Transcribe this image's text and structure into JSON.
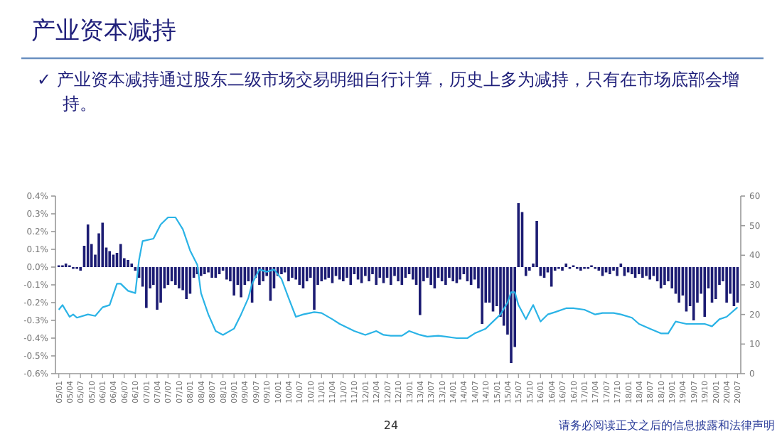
{
  "chart_data": {
    "type": "bar",
    "title": "产业资本减持",
    "subtitle": "✓ 产业资本减持通过股东二级市场交易明细自行计算，历史上多为减持，只有在市场底部会增持。",
    "annotations": [
      "24",
      "请务必阅读正文之后的信息披露和法律声明"
    ],
    "x": [
      "2005-01",
      "2005-02",
      "2005-03",
      "2005-04",
      "2005-05",
      "2005-06",
      "2005-07",
      "2005-08",
      "2005-09",
      "2005-10",
      "2005-11",
      "2005-12",
      "2006-01",
      "2006-02",
      "2006-03",
      "2006-04",
      "2006-05",
      "2006-06",
      "2006-07",
      "2006-08",
      "2006-09",
      "2006-10",
      "2006-11",
      "2006-12",
      "2007-01",
      "2007-02",
      "2007-03",
      "2007-04",
      "2007-05",
      "2007-06",
      "2007-07",
      "2007-08",
      "2007-09",
      "2007-10",
      "2007-11",
      "2007-12",
      "2008-01",
      "2008-02",
      "2008-03",
      "2008-04",
      "2008-05",
      "2008-06",
      "2008-07",
      "2008-08",
      "2008-09",
      "2008-10",
      "2008-11",
      "2008-12",
      "2009-01",
      "2009-02",
      "2009-03",
      "2009-04",
      "2009-05",
      "2009-06",
      "2009-07",
      "2009-08",
      "2009-09",
      "2009-10",
      "2009-11",
      "2009-12",
      "2010-01",
      "2010-02",
      "2010-03",
      "2010-04",
      "2010-05",
      "2010-06",
      "2010-07",
      "2010-08",
      "2010-09",
      "2010-10",
      "2010-11",
      "2010-12",
      "2011-01",
      "2011-02",
      "2011-03",
      "2011-04",
      "2011-05",
      "2011-06",
      "2011-07",
      "2011-08",
      "2011-09",
      "2011-10",
      "2011-11",
      "2011-12",
      "2012-01",
      "2012-02",
      "2012-03",
      "2012-04",
      "2012-05",
      "2012-06",
      "2012-07",
      "2012-08",
      "2012-09",
      "2012-10",
      "2012-11",
      "2012-12",
      "2013-01",
      "2013-02",
      "2013-03",
      "2013-04",
      "2013-05",
      "2013-06",
      "2013-07",
      "2013-08",
      "2013-09",
      "2013-10",
      "2013-11",
      "2013-12",
      "2014-01",
      "2014-02",
      "2014-03",
      "2014-04",
      "2014-05",
      "2014-06",
      "2014-07",
      "2014-08",
      "2014-09",
      "2014-10",
      "2014-11",
      "2014-12",
      "2015-01",
      "2015-02",
      "2015-03",
      "2015-04",
      "2015-05",
      "2015-06",
      "2015-07",
      "2015-08",
      "2015-09",
      "2015-10",
      "2015-11",
      "2015-12",
      "2016-01",
      "2016-02",
      "2016-03",
      "2016-04",
      "2016-05",
      "2016-06",
      "2016-07",
      "2016-08",
      "2016-09",
      "2016-10",
      "2016-11",
      "2016-12",
      "2017-01",
      "2017-02",
      "2017-03",
      "2017-04",
      "2017-05",
      "2017-06",
      "2017-07",
      "2017-08",
      "2017-09",
      "2017-10",
      "2017-11",
      "2017-12",
      "2018-01",
      "2018-02",
      "2018-03",
      "2018-04",
      "2018-05",
      "2018-06",
      "2018-07",
      "2018-08",
      "2018-09",
      "2018-10",
      "2018-11",
      "2018-12",
      "2019-01",
      "2019-02",
      "2019-03",
      "2019-04",
      "2019-05",
      "2019-06",
      "2019-07",
      "2019-08",
      "2019-09",
      "2019-10",
      "2019-11",
      "2019-12",
      "2020-01",
      "2020-02",
      "2020-03",
      "2020-04",
      "2020-05",
      "2020-06",
      "2020-07"
    ],
    "series": [
      {
        "color": "#1c1c73",
        "values": [
          0.01,
          0.01,
          0.02,
          0.01,
          -0.01,
          -0.01,
          -0.02,
          0.12,
          0.24,
          0.13,
          0.07,
          0.19,
          0.25,
          0.11,
          0.09,
          0.07,
          0.08,
          0.13,
          0.05,
          0.04,
          0.02,
          -0.02,
          -0.06,
          -0.11,
          -0.23,
          -0.12,
          -0.1,
          -0.24,
          -0.2,
          -0.12,
          -0.1,
          -0.08,
          -0.1,
          -0.12,
          -0.13,
          -0.18,
          -0.15,
          -0.06,
          -0.04,
          -0.05,
          -0.04,
          -0.03,
          -0.06,
          -0.06,
          -0.04,
          -0.02,
          -0.07,
          -0.08,
          -0.16,
          -0.1,
          -0.17,
          -0.1,
          -0.08,
          -0.2,
          -0.06,
          -0.1,
          -0.08,
          -0.05,
          -0.19,
          -0.12,
          -0.05,
          -0.04,
          -0.03,
          -0.08,
          -0.06,
          -0.07,
          -0.1,
          -0.12,
          -0.08,
          -0.06,
          -0.24,
          -0.1,
          -0.08,
          -0.07,
          -0.06,
          -0.09,
          -0.05,
          -0.07,
          -0.08,
          -0.06,
          -0.1,
          -0.04,
          -0.07,
          -0.09,
          -0.05,
          -0.08,
          -0.04,
          -0.1,
          -0.06,
          -0.09,
          -0.06,
          -0.1,
          -0.05,
          -0.08,
          -0.1,
          -0.06,
          -0.04,
          -0.07,
          -0.1,
          -0.27,
          -0.08,
          -0.06,
          -0.1,
          -0.12,
          -0.06,
          -0.08,
          -0.1,
          -0.06,
          -0.08,
          -0.09,
          -0.07,
          -0.04,
          -0.08,
          -0.1,
          -0.07,
          -0.12,
          -0.32,
          -0.2,
          -0.2,
          -0.25,
          -0.22,
          -0.28,
          -0.33,
          -0.38,
          -0.54,
          -0.45,
          0.36,
          0.31,
          -0.05,
          -0.02,
          0.02,
          0.26,
          -0.05,
          -0.06,
          -0.03,
          -0.11,
          -0.02,
          -0.01,
          -0.02,
          0.02,
          -0.01,
          0.01,
          -0.01,
          -0.02,
          -0.01,
          -0.01,
          0.01,
          -0.01,
          -0.02,
          -0.05,
          -0.03,
          -0.04,
          -0.02,
          -0.05,
          0.02,
          -0.05,
          -0.03,
          -0.04,
          -0.06,
          -0.04,
          -0.06,
          -0.05,
          -0.07,
          -0.05,
          -0.08,
          -0.12,
          -0.1,
          -0.08,
          -0.12,
          -0.15,
          -0.2,
          -0.16,
          -0.25,
          -0.22,
          -0.3,
          -0.2,
          -0.15,
          -0.28,
          -0.12,
          -0.2,
          -0.18,
          -0.1,
          -0.08,
          -0.2,
          -0.15,
          -0.22,
          -0.2
        ]
      },
      {
        "type": "line",
        "axis": "y2",
        "color": "#2ab3e6",
        "x": [
          "2005-01",
          "2005-02",
          "2005-04",
          "2005-05",
          "2005-06",
          "2005-09",
          "2005-11",
          "2006-01",
          "2006-03",
          "2006-05",
          "2006-06",
          "2006-08",
          "2006-10",
          "2006-11",
          "2006-12",
          "2007-03",
          "2007-05",
          "2007-07",
          "2007-09",
          "2007-11",
          "2008-01",
          "2008-03",
          "2008-04",
          "2008-06",
          "2008-08",
          "2008-10",
          "2009-01",
          "2009-03",
          "2009-05",
          "2009-06",
          "2009-08",
          "2009-10",
          "2009-12",
          "2010-02",
          "2010-04",
          "2010-06",
          "2010-08",
          "2010-11",
          "2011-01",
          "2011-04",
          "2011-06",
          "2011-10",
          "2012-01",
          "2012-04",
          "2012-06",
          "2012-08",
          "2012-11",
          "2013-01",
          "2013-04",
          "2013-06",
          "2013-09",
          "2013-11",
          "2014-02",
          "2014-05",
          "2014-07",
          "2014-10",
          "2014-12",
          "2015-02",
          "2015-04",
          "2015-05",
          "2015-06",
          "2015-07",
          "2015-09",
          "2015-10",
          "2015-11",
          "2016-01",
          "2016-03",
          "2016-05",
          "2016-08",
          "2016-10",
          "2017-01",
          "2017-04",
          "2017-06",
          "2017-09",
          "2017-11",
          "2018-02",
          "2018-04",
          "2018-07",
          "2018-10",
          "2018-12",
          "2019-02",
          "2019-05",
          "2019-07",
          "2019-10",
          "2019-12",
          "2020-02",
          "2020-04",
          "2020-07"
        ],
        "values": [
          21.6,
          23.2,
          19.2,
          20,
          18.9,
          20,
          19.5,
          22.4,
          23.2,
          30.4,
          30.4,
          28,
          27.2,
          38.4,
          44.8,
          45.6,
          50.4,
          52.8,
          52.8,
          48.8,
          41.6,
          36.8,
          27.2,
          20,
          14.4,
          13.1,
          15.2,
          20,
          25.6,
          30.4,
          35.2,
          34.4,
          35.2,
          32,
          25.6,
          19.2,
          20,
          20.8,
          20.5,
          18.4,
          16.8,
          14.4,
          13.1,
          14.4,
          13.1,
          12.8,
          12.8,
          14.4,
          13.1,
          12.5,
          12.8,
          12.5,
          12,
          12,
          13.6,
          15.2,
          17.6,
          20,
          24,
          27.5,
          27.5,
          23.2,
          18.4,
          20.8,
          23.2,
          17.6,
          20,
          20.8,
          22.1,
          22.1,
          21.6,
          20,
          20.5,
          20.5,
          20,
          18.9,
          16.8,
          15.2,
          13.6,
          13.6,
          17.6,
          16.8,
          16.8,
          16.8,
          16,
          18.4,
          19.2,
          22.4
        ]
      }
    ],
    "xlim": [
      "2004-12-16",
      "2020-07-16"
    ],
    "xticks": [
      {
        "value": "2005-01",
        "label": "05/01"
      },
      {
        "value": "2005-04",
        "label": "05/04"
      },
      {
        "value": "2005-07",
        "label": "05/07"
      },
      {
        "value": "2005-10",
        "label": "05/10"
      },
      {
        "value": "2006-01",
        "label": "06/01"
      },
      {
        "value": "2006-04",
        "label": "06/04"
      },
      {
        "value": "2006-07",
        "label": "06/07"
      },
      {
        "value": "2006-10",
        "label": "06/10"
      },
      {
        "value": "2007-01",
        "label": "07/01"
      },
      {
        "value": "2007-04",
        "label": "07/04"
      },
      {
        "value": "2007-07",
        "label": "07/07"
      },
      {
        "value": "2007-10",
        "label": "07/10"
      },
      {
        "value": "2008-01",
        "label": "08/01"
      },
      {
        "value": "2008-04",
        "label": "08/04"
      },
      {
        "value": "2008-07",
        "label": "08/07"
      },
      {
        "value": "2008-10",
        "label": "08/10"
      },
      {
        "value": "2009-01",
        "label": "09/01"
      },
      {
        "value": "2009-04",
        "label": "09/04"
      },
      {
        "value": "2009-07",
        "label": "09/07"
      },
      {
        "value": "2009-10",
        "label": "09/10"
      },
      {
        "value": "2010-01",
        "label": "10/01"
      },
      {
        "value": "2010-04",
        "label": "10/04"
      },
      {
        "value": "2010-07",
        "label": "10/07"
      },
      {
        "value": "2010-10",
        "label": "10/10"
      },
      {
        "value": "2011-01",
        "label": "11/01"
      },
      {
        "value": "2011-04",
        "label": "11/04"
      },
      {
        "value": "2011-07",
        "label": "11/07"
      },
      {
        "value": "2011-10",
        "label": "11/10"
      },
      {
        "value": "2012-01",
        "label": "12/01"
      },
      {
        "value": "2012-04",
        "label": "12/04"
      },
      {
        "value": "2012-07",
        "label": "12/07"
      },
      {
        "value": "2012-10",
        "label": "12/10"
      },
      {
        "value": "2013-01",
        "label": "13/01"
      },
      {
        "value": "2013-04",
        "label": "13/04"
      },
      {
        "value": "2013-07",
        "label": "13/07"
      },
      {
        "value": "2013-10",
        "label": "13/10"
      },
      {
        "value": "2014-01",
        "label": "14/01"
      },
      {
        "value": "2014-04",
        "label": "14/04"
      },
      {
        "value": "2014-07",
        "label": "14/07"
      },
      {
        "value": "2014-10",
        "label": "14/10"
      },
      {
        "value": "2015-01",
        "label": "15/01"
      },
      {
        "value": "2015-04",
        "label": "15/04"
      },
      {
        "value": "2015-07",
        "label": "15/07"
      },
      {
        "value": "2015-10",
        "label": "15/10"
      },
      {
        "value": "2016-01",
        "label": "16/01"
      },
      {
        "value": "2016-04",
        "label": "16/04"
      },
      {
        "value": "2016-07",
        "label": "16/07"
      },
      {
        "value": "2016-10",
        "label": "16/10"
      },
      {
        "value": "2017-01",
        "label": "17/01"
      },
      {
        "value": "2017-04",
        "label": "17/04"
      },
      {
        "value": "2017-07",
        "label": "17/07"
      },
      {
        "value": "2017-10",
        "label": "17/10"
      },
      {
        "value": "2018-01",
        "label": "18/01"
      },
      {
        "value": "2018-04",
        "label": "18/04"
      },
      {
        "value": "2018-07",
        "label": "18/07"
      },
      {
        "value": "2018-10",
        "label": "18/10"
      },
      {
        "value": "2019-01",
        "label": "19/01"
      },
      {
        "value": "2019-04",
        "label": "19/04"
      },
      {
        "value": "2019-07",
        "label": "19/07"
      },
      {
        "value": "2019-10",
        "label": "19/10"
      },
      {
        "value": "2020-01",
        "label": "20/01"
      },
      {
        "value": "2020-04",
        "label": "20/04"
      },
      {
        "value": "2020-07",
        "label": "20/07"
      }
    ],
    "ylim": [
      -0.6,
      0.4
    ],
    "yticks": [
      {
        "value": 0.4,
        "label": "0.4%"
      },
      {
        "value": 0.3,
        "label": "0.3%"
      },
      {
        "value": 0.2,
        "label": "0.2%"
      },
      {
        "value": 0.1,
        "label": "0.1%"
      },
      {
        "value": 0,
        "label": "0.0%"
      },
      {
        "value": -0.1,
        "label": "-0.1%"
      },
      {
        "value": -0.2,
        "label": "-0.2%"
      },
      {
        "value": -0.3,
        "label": "-0.3%"
      },
      {
        "value": -0.4,
        "label": "-0.4%"
      },
      {
        "value": -0.5,
        "label": "-0.5%"
      },
      {
        "value": -0.6,
        "label": "-0.6%"
      }
    ],
    "y2lim": [
      0,
      60
    ],
    "y2ticks": [
      0,
      10,
      20,
      30,
      40,
      50,
      60
    ]
  }
}
